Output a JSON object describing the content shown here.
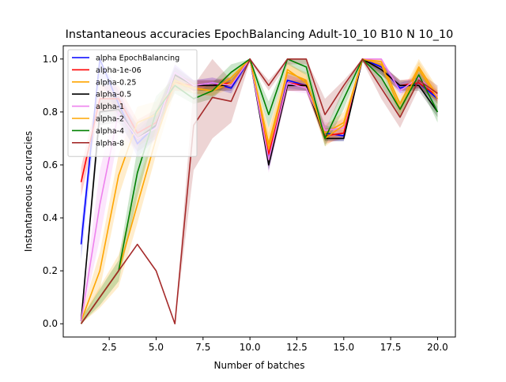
{
  "chart_data": {
    "type": "line",
    "title": "Instantaneous accuracies EpochBalancing Adult-10_10 B10 N 10_10",
    "xlabel": "Number of batches",
    "ylabel": "Instantaneous accuracies",
    "xlim": [
      0.05,
      20.95
    ],
    "ylim": [
      -0.05,
      1.05
    ],
    "xticks": [
      2.5,
      5.0,
      7.5,
      10.0,
      12.5,
      15.0,
      17.5,
      20.0
    ],
    "xtick_labels": [
      "2.5",
      "5.0",
      "7.5",
      "10.0",
      "12.5",
      "15.0",
      "17.5",
      "20.0"
    ],
    "yticks": [
      0.0,
      0.2,
      0.4,
      0.6,
      0.8,
      1.0
    ],
    "ytick_labels": [
      "0.0",
      "0.2",
      "0.4",
      "0.6",
      "0.8",
      "1.0"
    ],
    "grid": false,
    "legend_position": "upper-left",
    "x": [
      1,
      2,
      3,
      4,
      5,
      6,
      7,
      8,
      9,
      10,
      11,
      12,
      13,
      14,
      15,
      16,
      17,
      18,
      19,
      20
    ],
    "series": [
      {
        "name": "alpha EpochBalancing",
        "color": "#0000ff",
        "values": [
          0.3,
          1.0,
          0.83,
          0.68,
          0.75,
          0.95,
          0.9,
          0.91,
          0.89,
          1.0,
          0.63,
          0.92,
          0.9,
          0.72,
          0.71,
          1.0,
          0.97,
          0.89,
          0.91,
          0.85
        ],
        "lower": [
          0.24,
          0.93,
          0.78,
          0.63,
          0.7,
          0.92,
          0.88,
          0.89,
          0.87,
          0.99,
          0.58,
          0.89,
          0.88,
          0.69,
          0.69,
          0.99,
          0.95,
          0.87,
          0.89,
          0.83
        ],
        "upper": [
          0.36,
          1.0,
          0.88,
          0.73,
          0.8,
          0.98,
          0.92,
          0.93,
          0.91,
          1.0,
          0.68,
          0.95,
          0.92,
          0.75,
          0.73,
          1.0,
          0.99,
          0.91,
          0.93,
          0.87
        ]
      },
      {
        "name": "alpha-1e-06",
        "color": "#ff0000",
        "values": [
          0.535,
          0.85,
          0.85,
          0.72,
          0.76,
          0.91,
          0.9,
          0.9,
          0.91,
          1.0,
          0.64,
          0.91,
          0.9,
          0.71,
          0.72,
          1.0,
          0.96,
          0.9,
          0.91,
          0.86
        ],
        "lower": [
          0.48,
          0.8,
          0.8,
          0.67,
          0.71,
          0.88,
          0.88,
          0.88,
          0.89,
          0.99,
          0.59,
          0.88,
          0.88,
          0.68,
          0.7,
          0.99,
          0.94,
          0.88,
          0.89,
          0.84
        ],
        "upper": [
          0.59,
          0.9,
          0.9,
          0.77,
          0.81,
          0.94,
          0.92,
          0.92,
          0.93,
          1.0,
          0.69,
          0.94,
          0.92,
          0.74,
          0.74,
          1.0,
          0.98,
          0.92,
          0.93,
          0.88
        ]
      },
      {
        "name": "alpha-0.25",
        "color": "#ffa500",
        "values": [
          0.01,
          0.2,
          0.56,
          0.76,
          0.79,
          0.92,
          0.89,
          0.88,
          0.91,
          1.0,
          0.66,
          0.96,
          0.91,
          0.72,
          0.76,
          1.0,
          0.99,
          0.83,
          0.97,
          0.86
        ],
        "lower": [
          0.0,
          0.13,
          0.48,
          0.7,
          0.74,
          0.89,
          0.87,
          0.86,
          0.89,
          0.99,
          0.6,
          0.93,
          0.88,
          0.69,
          0.72,
          0.99,
          0.97,
          0.8,
          0.94,
          0.83
        ],
        "upper": [
          0.03,
          0.27,
          0.64,
          0.82,
          0.84,
          0.95,
          0.91,
          0.9,
          0.93,
          1.0,
          0.72,
          0.99,
          0.94,
          0.75,
          0.8,
          1.0,
          1.0,
          0.86,
          1.0,
          0.89
        ]
      },
      {
        "name": "alpha-0.5",
        "color": "#000000",
        "values": [
          0.01,
          0.8,
          0.81,
          0.7,
          0.75,
          0.94,
          0.9,
          0.9,
          0.9,
          1.0,
          0.6,
          0.9,
          0.9,
          0.7,
          0.7,
          1.0,
          0.96,
          0.9,
          0.9,
          0.8
        ],
        "lower": [
          0.0,
          0.75,
          0.76,
          0.65,
          0.7,
          0.91,
          0.88,
          0.88,
          0.88,
          0.99,
          0.58,
          0.88,
          0.88,
          0.69,
          0.69,
          0.99,
          0.94,
          0.88,
          0.88,
          0.78
        ],
        "upper": [
          0.03,
          0.85,
          0.86,
          0.75,
          0.8,
          0.97,
          0.92,
          0.92,
          0.92,
          1.0,
          0.62,
          0.92,
          0.92,
          0.71,
          0.71,
          1.0,
          0.98,
          0.92,
          0.92,
          0.82
        ]
      },
      {
        "name": "alpha-1",
        "color": "#ee82ee",
        "values": [
          0.01,
          0.45,
          0.8,
          0.7,
          0.74,
          0.95,
          0.9,
          0.91,
          0.9,
          1.0,
          0.62,
          0.91,
          0.89,
          0.73,
          0.74,
          1.0,
          1.0,
          0.88,
          0.93,
          0.86
        ],
        "lower": [
          0.0,
          0.32,
          0.72,
          0.65,
          0.69,
          0.92,
          0.88,
          0.89,
          0.88,
          0.99,
          0.57,
          0.88,
          0.87,
          0.7,
          0.71,
          0.99,
          0.98,
          0.86,
          0.91,
          0.84
        ],
        "upper": [
          0.03,
          0.58,
          0.88,
          0.75,
          0.79,
          0.98,
          0.92,
          0.93,
          0.92,
          1.0,
          0.67,
          0.94,
          0.91,
          0.76,
          0.77,
          1.0,
          1.0,
          0.9,
          0.95,
          0.88
        ]
      },
      {
        "name": "alpha-2",
        "color": "#ffa500",
        "values": [
          0.0,
          0.1,
          0.2,
          0.45,
          0.7,
          0.91,
          0.89,
          0.88,
          0.93,
          1.0,
          0.68,
          0.95,
          0.92,
          0.7,
          0.75,
          1.0,
          0.98,
          0.81,
          0.96,
          0.85
        ],
        "lower": [
          0.0,
          0.06,
          0.14,
          0.38,
          0.64,
          0.88,
          0.87,
          0.86,
          0.91,
          0.99,
          0.62,
          0.92,
          0.89,
          0.67,
          0.72,
          0.99,
          0.96,
          0.78,
          0.93,
          0.82
        ],
        "upper": [
          0.02,
          0.14,
          0.26,
          0.52,
          0.76,
          0.94,
          0.91,
          0.9,
          0.95,
          1.0,
          0.74,
          0.98,
          0.95,
          0.73,
          0.78,
          1.0,
          1.0,
          0.84,
          0.99,
          0.88
        ]
      },
      {
        "name": "alpha-4",
        "color": "#008000",
        "values": [
          0.0,
          0.1,
          0.2,
          0.57,
          0.8,
          0.9,
          0.85,
          0.88,
          0.95,
          1.0,
          0.79,
          1.0,
          0.97,
          0.7,
          0.85,
          1.0,
          0.93,
          0.81,
          0.94,
          0.8
        ],
        "lower": [
          0.0,
          0.07,
          0.16,
          0.48,
          0.74,
          0.87,
          0.83,
          0.85,
          0.92,
          0.99,
          0.74,
          0.98,
          0.94,
          0.67,
          0.81,
          0.99,
          0.9,
          0.78,
          0.91,
          0.76
        ],
        "upper": [
          0.02,
          0.13,
          0.24,
          0.66,
          0.86,
          0.93,
          0.87,
          0.91,
          0.98,
          1.0,
          0.84,
          1.0,
          1.0,
          0.73,
          0.89,
          1.0,
          0.96,
          0.84,
          0.97,
          0.84
        ]
      },
      {
        "name": "alpha-8",
        "color": "#a52a2a",
        "values": [
          0.0,
          0.1,
          0.2,
          0.3,
          0.2,
          0.0,
          0.75,
          0.855,
          0.84,
          1.0,
          0.9,
          1.0,
          1.0,
          0.79,
          0.9,
          1.0,
          0.89,
          0.78,
          0.92,
          0.87
        ],
        "lower": [
          0.0,
          0.1,
          0.2,
          0.3,
          0.2,
          0.0,
          0.58,
          0.7,
          0.76,
          0.99,
          0.88,
          0.98,
          0.98,
          0.73,
          0.88,
          0.99,
          0.85,
          0.74,
          0.89,
          0.84
        ],
        "upper": [
          0.0,
          0.1,
          0.2,
          0.3,
          0.2,
          0.0,
          0.9,
          1.0,
          0.92,
          1.0,
          0.92,
          1.0,
          1.0,
          0.85,
          0.92,
          1.0,
          0.93,
          0.82,
          0.95,
          0.9
        ]
      }
    ]
  }
}
